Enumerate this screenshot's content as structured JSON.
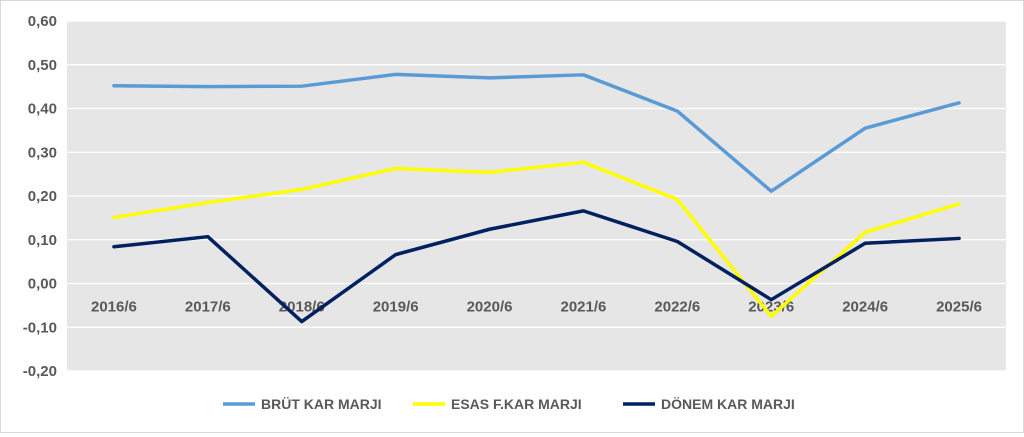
{
  "chart_data": {
    "type": "line",
    "title": "",
    "xlabel": "",
    "ylabel": "",
    "categories": [
      "2016/6",
      "2017/6",
      "2018/6",
      "2019/6",
      "2020/6",
      "2021/6",
      "2022/6",
      "2023/6",
      "2024/6",
      "2025/6"
    ],
    "ylim": [
      -0.2,
      0.6
    ],
    "y_ticks": [
      "-0,20",
      "-0,10",
      "0,00",
      "0,10",
      "0,20",
      "0,30",
      "0,40",
      "0,50",
      "0,60"
    ],
    "y_tick_values": [
      -0.2,
      -0.1,
      0.0,
      0.1,
      0.2,
      0.3,
      0.4,
      0.5,
      0.6
    ],
    "grid": true,
    "legend_position": "bottom",
    "plot_background": "#e6e6e6",
    "series": [
      {
        "name": "BRÜT KAR MARJI",
        "color": "#5b9bd5",
        "values": [
          0.452,
          0.45,
          0.451,
          0.478,
          0.47,
          0.477,
          0.394,
          0.211,
          0.355,
          0.413
        ]
      },
      {
        "name": "ESAS F.KAR MARJI",
        "color": "#ffff00",
        "values": [
          0.151,
          0.185,
          0.215,
          0.263,
          0.254,
          0.277,
          0.192,
          -0.075,
          0.117,
          0.182
        ]
      },
      {
        "name": "DÖNEM KAR MARJI",
        "color": "#002060",
        "values": [
          0.084,
          0.107,
          -0.087,
          0.066,
          0.124,
          0.166,
          0.096,
          -0.037,
          0.092,
          0.103
        ]
      }
    ]
  }
}
